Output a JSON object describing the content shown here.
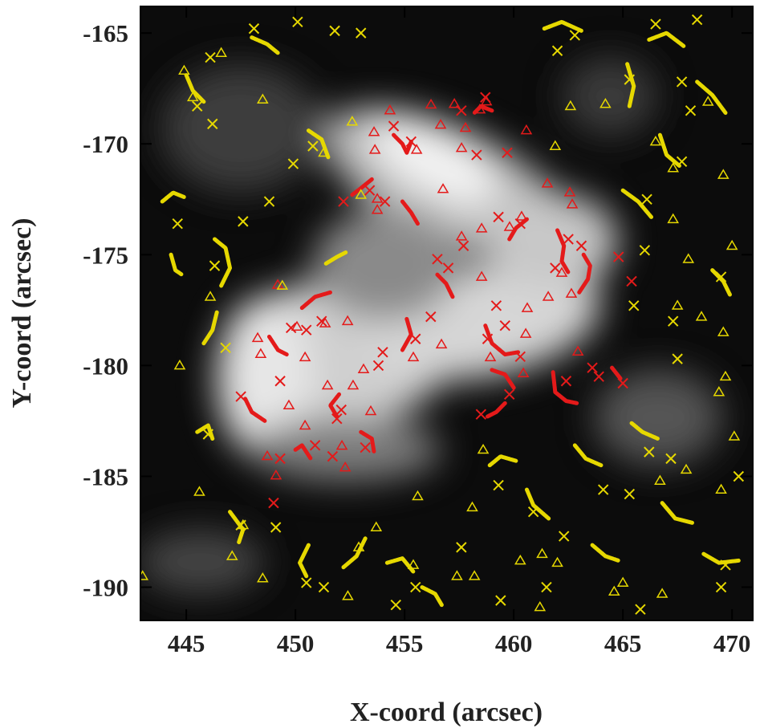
{
  "chart_data": {
    "type": "scatter",
    "xlabel": "X-coord (arcsec)",
    "ylabel": "Y-coord (arcsec)",
    "xlim": [
      442.9,
      470.95
    ],
    "ylim": [
      -191.5,
      -163.8
    ],
    "xticks": [
      445,
      450,
      455,
      460,
      465,
      470
    ],
    "yticks": [
      -190,
      -185,
      -180,
      -175,
      -170,
      -165
    ],
    "grid": false,
    "series": [
      {
        "color": "#e41a1a",
        "marker": "triangle",
        "x": [
          456.21,
          457.28,
          458.45,
          458.75,
          454.33,
          456.65,
          457.79,
          455.55,
          453.64,
          453.6,
          457.61,
          460.58,
          461.54,
          456.76,
          453.75,
          453.75,
          462.57,
          462.68,
          460.36,
          459.81,
          458.53,
          457.61,
          462.2,
          462.64,
          461.58,
          460.62,
          458.53,
          460.55,
          462.94,
          458.93,
          460.44,
          456.69,
          455.4,
          452.39,
          451.36,
          450.07,
          449.19,
          448.27,
          448.41,
          450.44,
          452.64,
          451.47,
          449.7,
          450.44,
          448.71,
          449.11,
          452.28,
          452.13,
          453.12,
          453.45
        ],
        "y": [
          -168.23,
          -168.2,
          -168.45,
          -168.09,
          -168.49,
          -169.14,
          -169.28,
          -170.27,
          -170.27,
          -169.47,
          -170.19,
          -169.39,
          -171.79,
          -172.04,
          -172.48,
          -172.98,
          -172.19,
          -172.73,
          -173.28,
          -173.75,
          -173.82,
          -174.18,
          -175.82,
          -176.76,
          -176.9,
          -177.41,
          -176.0,
          -178.57,
          -179.37,
          -179.63,
          -180.35,
          -179.05,
          -179.63,
          -178.0,
          -178.1,
          -178.25,
          -176.36,
          -178.76,
          -179.48,
          -179.63,
          -180.9,
          -180.9,
          -181.8,
          -182.71,
          -184.09,
          -184.96,
          -184.6,
          -183.62,
          -180.17,
          -182.06
        ]
      },
      {
        "color": "#e41a1a",
        "marker": "cross",
        "x": [
          458.7,
          457.6,
          454.5,
          455.3,
          458.3,
          459.7,
          453.4,
          454.1,
          452.2,
          459.3,
          460.3,
          462.5,
          463.1,
          464.8,
          465.4,
          461.9,
          457.0,
          457.7,
          456.5,
          459.2,
          459.6,
          458.8,
          460.3,
          456.2,
          455.5,
          453.8,
          454.0,
          451.2,
          450.5,
          449.8,
          449.3,
          447.5,
          451.9,
          452.1,
          450.9,
          451.7,
          449.3,
          449.0,
          453.2,
          462.4,
          463.6,
          463.9,
          465.0,
          459.8,
          458.5
        ],
        "y": [
          -167.9,
          -168.5,
          -169.2,
          -169.9,
          -170.5,
          -170.4,
          -172.1,
          -172.6,
          -172.6,
          -173.3,
          -173.6,
          -174.3,
          -174.6,
          -175.1,
          -176.2,
          -175.6,
          -175.6,
          -174.6,
          -175.2,
          -177.3,
          -178.2,
          -178.8,
          -179.6,
          -177.8,
          -178.8,
          -180.0,
          -179.4,
          -178.0,
          -178.4,
          -178.3,
          -180.7,
          -181.4,
          -182.4,
          -182.0,
          -183.6,
          -184.1,
          -184.2,
          -186.2,
          -183.7,
          -180.7,
          -180.1,
          -180.5,
          -180.8,
          -181.3,
          -182.2
        ]
      },
      {
        "color": "#e6d800",
        "marker": "triangle",
        "x": [
          445.3,
          444.9,
          446.6,
          448.5,
          452.6,
          451.3,
          453.0,
          446.1,
          449.4,
          444.7,
          445.6,
          447.6,
          447.1,
          448.5,
          452.9,
          453.7,
          455.4,
          457.4,
          455.6,
          458.6,
          458.1,
          460.3,
          461.3,
          462.0,
          465.0,
          466.7,
          467.9,
          469.5,
          470.1,
          469.4,
          469.7,
          469.6,
          467.5,
          468.6,
          468.0,
          467.3,
          470.0,
          469.6,
          467.3,
          466.5,
          464.2,
          468.9,
          462.6,
          461.9,
          443.0,
          452.4,
          466.8,
          464.6,
          461.2,
          458.2
        ],
        "y": [
          -167.9,
          -166.7,
          -165.9,
          -168.0,
          -169.0,
          -170.4,
          -172.3,
          -176.9,
          -176.4,
          -180.0,
          -185.7,
          -187.2,
          -188.6,
          -189.6,
          -188.2,
          -187.3,
          -189.0,
          -189.5,
          -185.9,
          -183.8,
          -186.4,
          -188.8,
          -188.5,
          -188.9,
          -189.8,
          -185.2,
          -184.7,
          -185.6,
          -183.2,
          -181.2,
          -180.5,
          -178.5,
          -177.3,
          -177.8,
          -175.2,
          -173.4,
          -174.6,
          -171.4,
          -171.1,
          -169.9,
          -168.2,
          -168.1,
          -168.3,
          -170.1,
          -189.5,
          -190.4,
          -190.3,
          -190.2,
          -190.9,
          -189.5
        ]
      },
      {
        "color": "#e6d800",
        "marker": "cross",
        "x": [
          445.5,
          446.2,
          450.8,
          449.9,
          453.0,
          451.8,
          448.1,
          446.1,
          444.6,
          447.6,
          448.8,
          446.3,
          446.8,
          446.0,
          447.5,
          449.1,
          450.5,
          451.3,
          454.6,
          455.5,
          457.6,
          459.3,
          460.9,
          462.3,
          464.1,
          465.3,
          466.2,
          467.2,
          470.3,
          469.7,
          469.5,
          465.8,
          459.4,
          461.5,
          467.5,
          467.3,
          469.5,
          465.5,
          466.0,
          467.7,
          466.1,
          468.1,
          467.7,
          465.3,
          462.8,
          462.0,
          466.5,
          468.4,
          450.1
        ],
        "y": [
          -168.3,
          -169.1,
          -170.1,
          -170.9,
          -165.0,
          -164.9,
          -164.8,
          -166.1,
          -173.6,
          -173.5,
          -172.6,
          -175.5,
          -179.2,
          -183.1,
          -187.2,
          -187.3,
          -189.8,
          -190.0,
          -190.8,
          -190.0,
          -188.2,
          -185.4,
          -186.6,
          -187.7,
          -185.6,
          -185.8,
          -183.9,
          -184.2,
          -185.0,
          -189.0,
          -190.0,
          -191.0,
          -190.6,
          -190.0,
          -179.7,
          -178.0,
          -176.0,
          -177.3,
          -174.8,
          -170.8,
          -172.5,
          -168.5,
          -167.2,
          -167.1,
          -165.1,
          -165.8,
          -164.6,
          -164.4,
          -164.5
        ]
      },
      {
        "color": "#e41a1a",
        "marker": "line",
        "x": [
          456.5,
          456.9,
          457.2,
          null,
          454.9,
          455.3,
          455.6,
          null,
          453.5,
          453.0,
          452.6,
          null,
          459.0,
          458.5,
          458.2,
          null,
          454.5,
          454.9,
          455.1,
          455.3,
          null,
          462.0,
          462.3,
          462.2,
          462.5,
          null,
          463.2,
          463.5,
          463.4,
          463.0,
          null,
          460.6,
          460.1,
          459.8,
          null,
          458.7,
          459.0,
          459.6,
          460.2,
          null,
          455.1,
          455.3,
          454.9,
          null,
          450.3,
          450.9,
          451.6,
          null,
          448.8,
          449.2,
          449.6,
          null,
          447.7,
          448.0,
          448.6,
          null,
          452.0,
          451.6,
          451.9,
          null,
          450.0,
          450.3,
          450.7,
          null,
          453.0,
          453.5,
          453.6,
          null,
          461.8,
          461.9,
          462.4,
          462.9,
          null,
          459.6,
          459.2,
          458.8,
          null,
          464.5,
          464.9,
          null,
          459.0,
          459.6,
          460.0
        ],
        "y": [
          -175.9,
          -176.3,
          -176.9,
          null,
          -172.6,
          -173.1,
          -173.6,
          null,
          -171.6,
          -172.0,
          -172.3,
          null,
          -168.5,
          -168.3,
          -168.6,
          null,
          -169.6,
          -170.0,
          -170.4,
          -169.9,
          null,
          -173.9,
          -174.6,
          -175.3,
          -175.8,
          null,
          -175.0,
          -175.5,
          -176.1,
          -176.7,
          null,
          -173.4,
          -173.8,
          -174.3,
          null,
          -178.2,
          -179.0,
          -179.5,
          -179.4,
          null,
          -177.9,
          -178.6,
          -179.3,
          null,
          -177.4,
          -176.9,
          -176.7,
          null,
          -178.7,
          -179.3,
          -179.5,
          null,
          -181.5,
          -182.1,
          -182.5,
          null,
          -181.3,
          -181.8,
          -182.3,
          null,
          -183.8,
          -183.6,
          -184.2,
          null,
          -183.0,
          -183.3,
          -183.9,
          null,
          -180.3,
          -181.2,
          -181.6,
          -181.7,
          null,
          -181.7,
          -182.1,
          -182.3,
          null,
          -180.1,
          -180.6,
          null,
          -180.2,
          -180.4,
          -181.0
        ]
      },
      {
        "color": "#e6d800",
        "marker": "line",
        "x": [
          445.0,
          445.3,
          445.8,
          null,
          443.9,
          444.4,
          444.9,
          null,
          446.3,
          446.8,
          447.0,
          446.6,
          null,
          444.3,
          444.5,
          444.8,
          null,
          446.4,
          446.2,
          445.8,
          null,
          448.0,
          448.7,
          449.2,
          null,
          450.6,
          451.2,
          451.5,
          null,
          451.4,
          451.9,
          452.3,
          null,
          445.5,
          446.0,
          446.2,
          null,
          447.0,
          447.6,
          447.4,
          null,
          450.6,
          450.2,
          450.5,
          null,
          453.2,
          452.8,
          452.2,
          null,
          454.2,
          454.9,
          455.4,
          null,
          455.8,
          456.4,
          456.7,
          null,
          458.9,
          459.4,
          460.1,
          null,
          460.6,
          460.9,
          461.6,
          null,
          462.8,
          463.3,
          464.0,
          null,
          465.4,
          465.9,
          466.6,
          null,
          466.8,
          467.4,
          468.2,
          null,
          468.7,
          469.4,
          470.3,
          null,
          465.0,
          465.7,
          466.3,
          null,
          466.7,
          467.0,
          467.6,
          null,
          468.4,
          469.1,
          469.7,
          null,
          465.2,
          465.5,
          465.3,
          null,
          466.2,
          467.0,
          467.8,
          null,
          461.4,
          462.2,
          463.1,
          null,
          469.1,
          469.6,
          469.9,
          null,
          463.6,
          464.2,
          464.8
        ],
        "y": [
          -166.9,
          -167.6,
          -168.1,
          null,
          -172.6,
          -172.2,
          -172.4,
          null,
          -174.3,
          -174.7,
          -175.6,
          -176.4,
          null,
          -175.0,
          -175.7,
          -175.9,
          null,
          -177.6,
          -178.4,
          -179.0,
          null,
          -165.2,
          -165.5,
          -165.9,
          null,
          -169.4,
          -169.8,
          -170.6,
          null,
          -175.4,
          -175.1,
          -174.9,
          null,
          -183.0,
          -182.7,
          -183.3,
          null,
          -186.6,
          -187.4,
          -188.0,
          null,
          -188.1,
          -188.9,
          -189.5,
          null,
          -187.8,
          -188.6,
          -189.1,
          null,
          -188.9,
          -188.7,
          -189.3,
          null,
          -190.0,
          -190.3,
          -190.8,
          null,
          -184.5,
          -184.1,
          -184.3,
          null,
          -185.6,
          -186.3,
          -186.9,
          null,
          -183.6,
          -184.2,
          -184.5,
          null,
          -182.6,
          -183.0,
          -183.3,
          null,
          -186.2,
          -186.9,
          -187.1,
          null,
          -188.5,
          -188.9,
          -188.8,
          null,
          -172.1,
          -172.6,
          -173.3,
          null,
          -169.6,
          -170.5,
          -171.0,
          null,
          -167.2,
          -167.8,
          -168.6,
          null,
          -166.4,
          -167.4,
          -168.3,
          null,
          -165.3,
          -165.0,
          -165.6,
          null,
          -164.8,
          -164.5,
          -164.9,
          null,
          -175.7,
          -176.2,
          -176.8,
          null,
          -188.1,
          -188.6,
          -188.8
        ]
      }
    ]
  }
}
